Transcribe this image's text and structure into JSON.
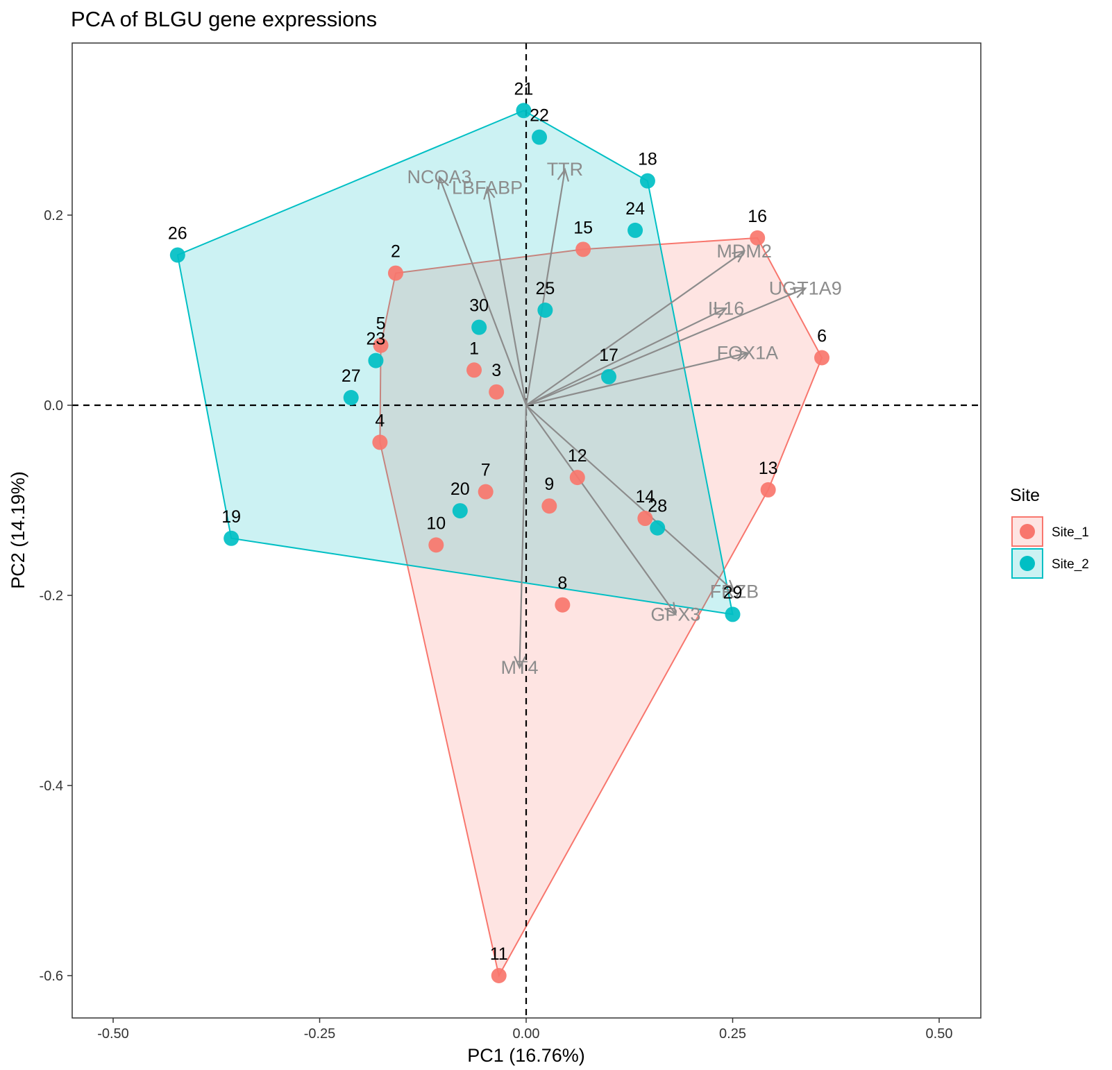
{
  "chart_data": {
    "type": "scatter",
    "title": "PCA of BLGU gene expressions",
    "xlabel": "PC1 (16.76%)",
    "ylabel": "PC2 (14.19%)",
    "xlim": [
      -0.55,
      0.55
    ],
    "ylim": [
      -0.64,
      0.38
    ],
    "xticks": [
      -0.5,
      -0.25,
      0.0,
      0.25,
      0.5
    ],
    "xtick_labels": [
      "-0.50",
      "-0.25",
      "0.00",
      "0.25",
      "0.50"
    ],
    "yticks": [
      -0.6,
      -0.4,
      -0.2,
      0.0,
      0.2
    ],
    "ytick_labels": [
      "-0.6",
      "-0.4",
      "-0.2",
      "0.0",
      "0.2"
    ],
    "grid": false,
    "reference_lines": {
      "x": 0,
      "y": 0,
      "style": "dashed"
    },
    "legend": {
      "title": "Site",
      "position": "right"
    },
    "series": [
      {
        "name": "Site_1",
        "color": "#F8766D",
        "hull_order": [
          "11",
          "4",
          "5",
          "2",
          "15",
          "16",
          "6",
          "13"
        ],
        "points": [
          {
            "label": "1",
            "x": -0.063,
            "y": 0.037
          },
          {
            "label": "2",
            "x": -0.158,
            "y": 0.139
          },
          {
            "label": "3",
            "x": -0.036,
            "y": 0.014
          },
          {
            "label": "4",
            "x": -0.177,
            "y": -0.039
          },
          {
            "label": "5",
            "x": -0.176,
            "y": 0.063
          },
          {
            "label": "6",
            "x": 0.358,
            "y": 0.05
          },
          {
            "label": "7",
            "x": -0.049,
            "y": -0.091
          },
          {
            "label": "8",
            "x": 0.044,
            "y": -0.21
          },
          {
            "label": "9",
            "x": 0.028,
            "y": -0.106
          },
          {
            "label": "10",
            "x": -0.109,
            "y": -0.147
          },
          {
            "label": "11",
            "x": -0.033,
            "y": -0.6
          },
          {
            "label": "12",
            "x": 0.062,
            "y": -0.076
          },
          {
            "label": "13",
            "x": 0.293,
            "y": -0.089
          },
          {
            "label": "14",
            "x": 0.144,
            "y": -0.119
          },
          {
            "label": "15",
            "x": 0.069,
            "y": 0.164
          },
          {
            "label": "16",
            "x": 0.28,
            "y": 0.176
          }
        ]
      },
      {
        "name": "Site_2",
        "color": "#00BFC4",
        "hull_order": [
          "19",
          "26",
          "21",
          "18",
          "29"
        ],
        "points": [
          {
            "label": "17",
            "x": 0.1,
            "y": 0.03
          },
          {
            "label": "18",
            "x": 0.147,
            "y": 0.236
          },
          {
            "label": "19",
            "x": -0.357,
            "y": -0.14
          },
          {
            "label": "20",
            "x": -0.08,
            "y": -0.111
          },
          {
            "label": "21",
            "x": -0.003,
            "y": 0.31
          },
          {
            "label": "22",
            "x": 0.016,
            "y": 0.282
          },
          {
            "label": "23",
            "x": -0.182,
            "y": 0.047
          },
          {
            "label": "24",
            "x": 0.132,
            "y": 0.184
          },
          {
            "label": "25",
            "x": 0.023,
            "y": 0.1
          },
          {
            "label": "26",
            "x": -0.422,
            "y": 0.158
          },
          {
            "label": "27",
            "x": -0.212,
            "y": 0.008
          },
          {
            "label": "28",
            "x": 0.159,
            "y": -0.129
          },
          {
            "label": "29",
            "x": 0.25,
            "y": -0.22
          },
          {
            "label": "30",
            "x": -0.057,
            "y": 0.082
          }
        ]
      }
    ],
    "loadings": [
      {
        "name": "NCOA3",
        "x": -0.105,
        "y": 0.24
      },
      {
        "name": "LBFABP",
        "x": -0.047,
        "y": 0.229
      },
      {
        "name": "TTR",
        "x": 0.047,
        "y": 0.248
      },
      {
        "name": "MDM2",
        "x": 0.264,
        "y": 0.162
      },
      {
        "name": "UGT1A9",
        "x": 0.338,
        "y": 0.123
      },
      {
        "name": "IL16",
        "x": 0.242,
        "y": 0.102
      },
      {
        "name": "FOX1A",
        "x": 0.268,
        "y": 0.055
      },
      {
        "name": "FRZB",
        "x": 0.252,
        "y": -0.196
      },
      {
        "name": "GPX3",
        "x": 0.181,
        "y": -0.22
      },
      {
        "name": "MT4",
        "x": -0.008,
        "y": -0.276
      }
    ],
    "loading_color": "#8c8c8c"
  }
}
